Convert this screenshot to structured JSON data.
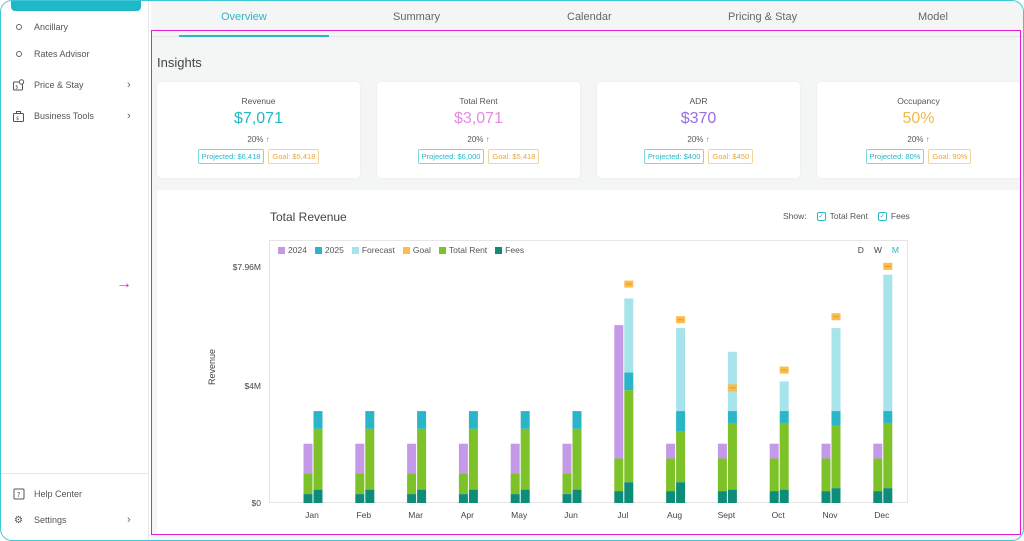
{
  "sidebar": {
    "items": [
      {
        "label": "Ancillary",
        "icon": "circle-icon"
      },
      {
        "label": "Rates Advisor",
        "icon": "circle-icon"
      },
      {
        "label": "Price & Stay",
        "icon": "price-tag-icon"
      },
      {
        "label": "Business Tools",
        "icon": "briefcase-icon"
      }
    ],
    "bottom": [
      {
        "label": "Help Center",
        "icon": "help-icon"
      },
      {
        "label": "Settings",
        "icon": "gear-icon"
      }
    ]
  },
  "tabs": [
    "Overview",
    "Summary",
    "Calendar",
    "Pricing & Stay",
    "Model"
  ],
  "active_tab": "Overview",
  "insights": {
    "title": "Insights",
    "cards": [
      {
        "label": "Revenue",
        "value": "$7,071",
        "color": "#1fb8c9",
        "change": "20%",
        "projected": "Projected: $6,418",
        "goal": "Goal: $5,418"
      },
      {
        "label": "Total Rent",
        "value": "$3,071",
        "color": "#e58be0",
        "change": "20%",
        "projected": "Projected: $6,000",
        "goal": "Goal: $5,418"
      },
      {
        "label": "ADR",
        "value": "$370",
        "color": "#9b6de0",
        "change": "20%",
        "projected": "Projected: $400",
        "goal": "Goal: $450"
      },
      {
        "label": "Occupancy",
        "value": "50%",
        "color": "#f2b94b",
        "change": "20%",
        "projected": "Projected: 80%",
        "goal": "Goal: 90%"
      }
    ]
  },
  "chart_panel": {
    "title": "Total Revenue",
    "show_label": "Show:",
    "show_options": [
      "Total Rent",
      "Fees"
    ],
    "periods": [
      "D",
      "W",
      "M"
    ],
    "active_period": "M",
    "ylabel": "Revenue",
    "yticks": [
      "$7.96M",
      "$4M",
      "$0"
    ]
  },
  "chart_data": {
    "type": "bar",
    "categories": [
      "Jan",
      "Feb",
      "Mar",
      "Apr",
      "May",
      "Jun",
      "Jul",
      "Aug",
      "Sept",
      "Oct",
      "Nov",
      "Dec"
    ],
    "ylabel": "Revenue",
    "ylim": [
      0,
      7.96
    ],
    "y_unit": "M",
    "legend": [
      "2024",
      "2025",
      "Forecast",
      "Goal",
      "Total Rent",
      "Fees"
    ],
    "colors": {
      "2024": "#c49ae8",
      "2025": "#2ab6c8",
      "Forecast": "#a6e3ea",
      "Goal": "#f7bd4f",
      "Total Rent": "#7ec22a",
      "Fees": "#0e8c7a"
    },
    "series": [
      {
        "name": "2024",
        "values": [
          2.0,
          2.0,
          2.0,
          2.0,
          2.0,
          2.0,
          6.0,
          2.0,
          2.0,
          2.0,
          2.0,
          2.0
        ]
      },
      {
        "name": "2024 Total Rent",
        "values": [
          1.0,
          1.0,
          1.0,
          1.0,
          1.0,
          1.0,
          1.5,
          1.5,
          1.5,
          1.5,
          1.5,
          1.5
        ]
      },
      {
        "name": "2024 Fees",
        "values": [
          0.3,
          0.3,
          0.3,
          0.3,
          0.3,
          0.3,
          0.4,
          0.4,
          0.4,
          0.4,
          0.4,
          0.4
        ]
      },
      {
        "name": "2025",
        "values": [
          3.1,
          3.1,
          3.1,
          3.1,
          3.1,
          3.1,
          4.4,
          3.1,
          3.1,
          3.1,
          3.1,
          3.1
        ]
      },
      {
        "name": "Total Rent",
        "values": [
          2.5,
          2.5,
          2.5,
          2.5,
          2.5,
          2.5,
          3.8,
          2.4,
          2.7,
          2.7,
          2.6,
          2.7
        ]
      },
      {
        "name": "Fees",
        "values": [
          0.45,
          0.45,
          0.45,
          0.45,
          0.45,
          0.45,
          0.7,
          0.7,
          0.45,
          0.45,
          0.5,
          0.5
        ]
      },
      {
        "name": "Forecast",
        "values": [
          null,
          null,
          null,
          null,
          null,
          null,
          6.9,
          5.9,
          5.1,
          4.1,
          5.9,
          7.7
        ]
      },
      {
        "name": "Goal",
        "values": [
          null,
          null,
          null,
          null,
          null,
          null,
          7.4,
          6.2,
          3.9,
          4.5,
          6.3,
          8.0
        ]
      }
    ]
  }
}
